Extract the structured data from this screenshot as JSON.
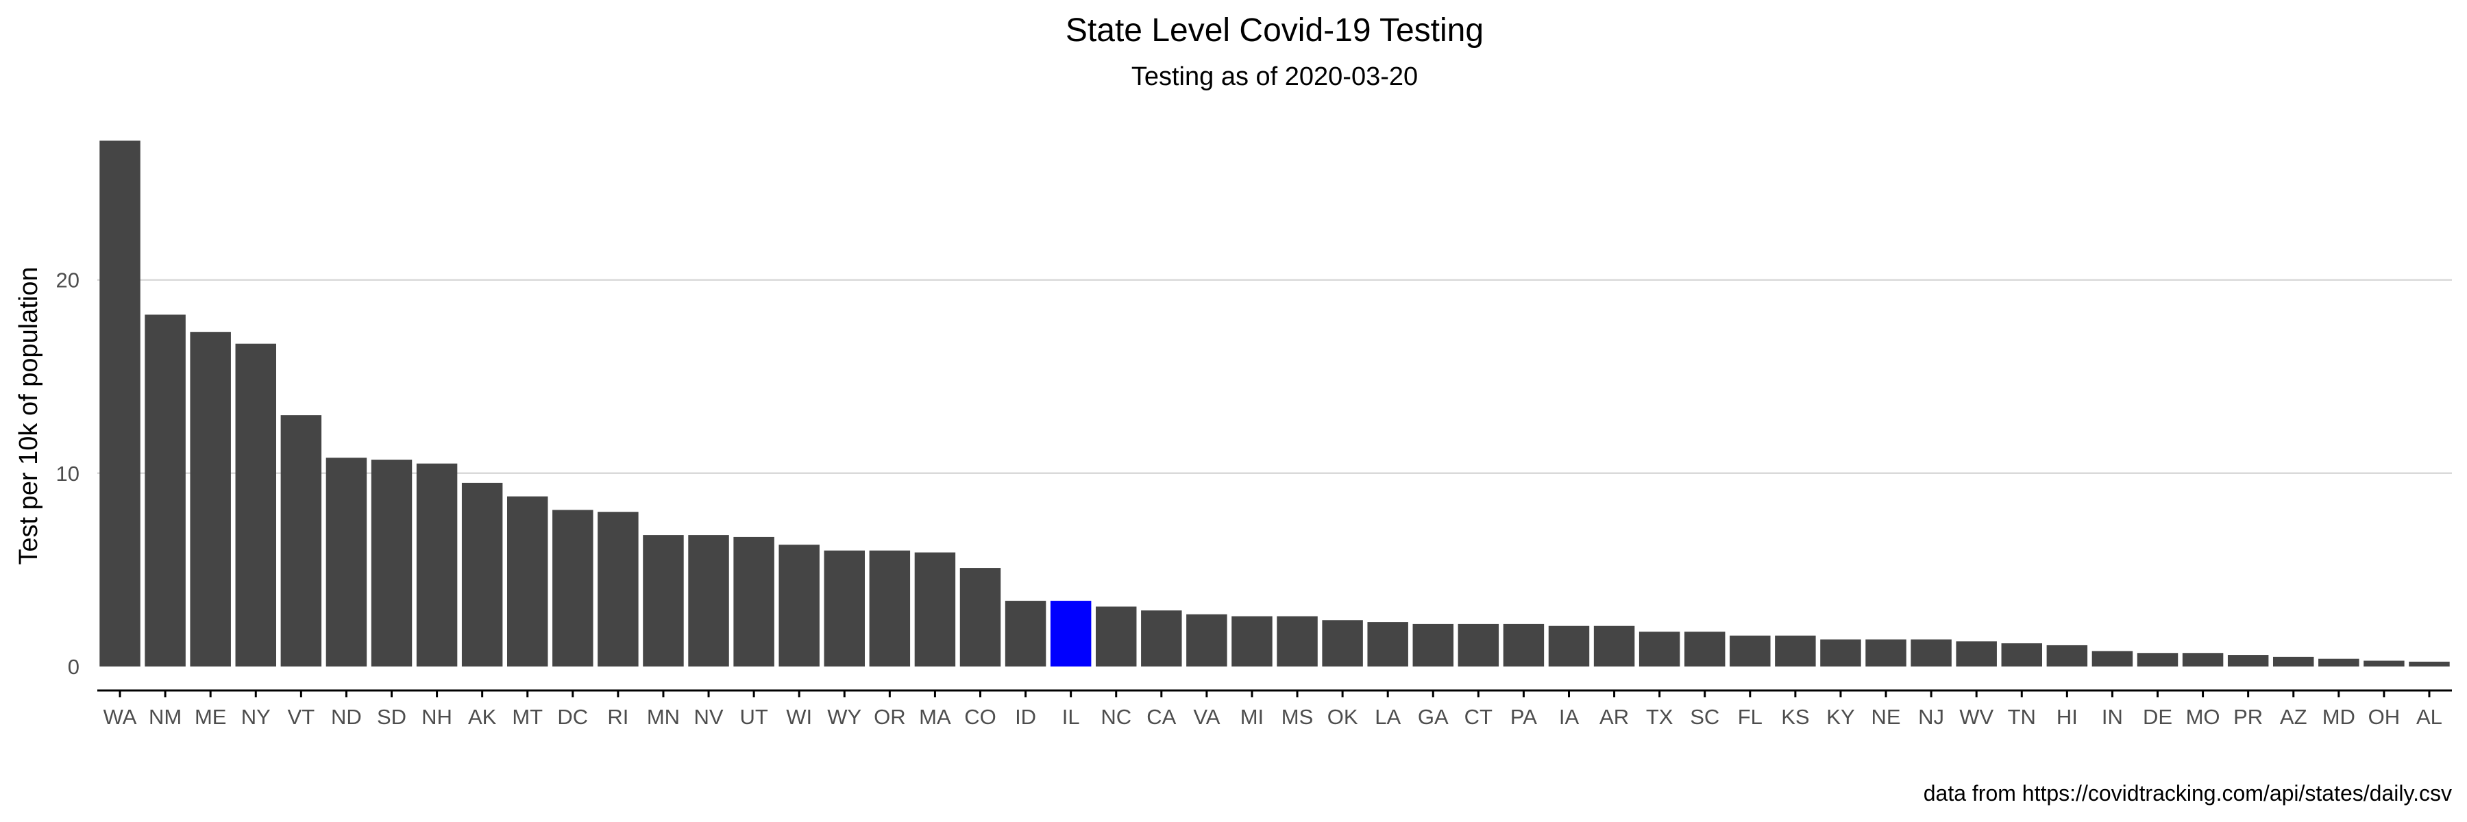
{
  "chart_data": {
    "type": "bar",
    "title": "State Level Covid-19 Testing",
    "subtitle": "Testing as of 2020-03-20",
    "xlabel": "",
    "ylabel": "Test per 10k of population",
    "caption": "data from https://covidtracking.com/api/states/daily.csv",
    "ylim": [
      0,
      28
    ],
    "yticks": [
      0,
      10,
      20
    ],
    "grid": "horizontal",
    "colors": {
      "default": "#454545",
      "highlight": "#0000ff",
      "grid": "#d9d9d9"
    },
    "highlight": "IL",
    "categories": [
      "WA",
      "NM",
      "ME",
      "NY",
      "VT",
      "ND",
      "SD",
      "NH",
      "AK",
      "MT",
      "DC",
      "RI",
      "MN",
      "NV",
      "UT",
      "WI",
      "WY",
      "OR",
      "MA",
      "CO",
      "ID",
      "IL",
      "NC",
      "CA",
      "VA",
      "MI",
      "MS",
      "OK",
      "LA",
      "GA",
      "CT",
      "PA",
      "IA",
      "AR",
      "TX",
      "SC",
      "FL",
      "KS",
      "KY",
      "NE",
      "NJ",
      "WV",
      "TN",
      "HI",
      "IN",
      "DE",
      "MO",
      "PR",
      "AZ",
      "MD",
      "OH",
      "AL"
    ],
    "values": [
      27.2,
      18.2,
      17.3,
      16.7,
      13.0,
      10.8,
      10.7,
      10.5,
      9.5,
      8.8,
      8.1,
      8.0,
      6.8,
      6.8,
      6.7,
      6.3,
      6.0,
      6.0,
      5.9,
      5.1,
      3.4,
      3.4,
      3.1,
      2.9,
      2.7,
      2.6,
      2.6,
      2.4,
      2.3,
      2.2,
      2.2,
      2.2,
      2.1,
      2.1,
      1.8,
      1.8,
      1.6,
      1.6,
      1.4,
      1.4,
      1.4,
      1.3,
      1.2,
      1.1,
      0.8,
      0.7,
      0.7,
      0.6,
      0.5,
      0.4,
      0.3,
      0.25
    ]
  }
}
